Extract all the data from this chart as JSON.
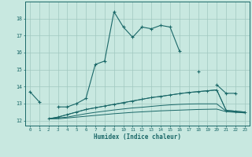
{
  "xlabel": "Humidex (Indice chaleur)",
  "bg_color": "#c8e8e0",
  "grid_color": "#a0c8c0",
  "line_color": "#1a6868",
  "x_values": [
    0,
    1,
    2,
    3,
    4,
    5,
    6,
    7,
    8,
    9,
    10,
    11,
    12,
    13,
    14,
    15,
    16,
    17,
    18,
    19,
    20,
    21,
    22,
    23
  ],
  "series1": [
    13.7,
    13.1,
    null,
    12.8,
    12.8,
    13.0,
    13.3,
    15.3,
    15.5,
    18.4,
    17.5,
    16.9,
    17.5,
    17.4,
    17.6,
    17.5,
    16.1,
    null,
    14.9,
    null,
    14.1,
    13.6,
    13.6,
    null
  ],
  "line2": [
    null,
    null,
    12.1,
    12.2,
    12.35,
    12.5,
    12.65,
    12.75,
    12.85,
    12.95,
    13.05,
    13.15,
    13.25,
    13.35,
    13.42,
    13.5,
    13.58,
    13.65,
    13.7,
    13.75,
    13.8,
    12.6,
    12.55,
    12.5
  ],
  "line3": [
    null,
    null,
    12.1,
    12.15,
    12.2,
    12.3,
    12.4,
    12.48,
    12.55,
    12.62,
    12.68,
    12.74,
    12.78,
    12.83,
    12.88,
    12.92,
    12.95,
    12.97,
    12.98,
    12.98,
    12.98,
    12.55,
    12.5,
    12.45
  ],
  "line4": [
    null,
    null,
    12.1,
    12.1,
    12.15,
    12.2,
    12.25,
    12.3,
    12.35,
    12.4,
    12.44,
    12.48,
    12.51,
    12.54,
    12.57,
    12.59,
    12.61,
    12.63,
    12.65,
    12.66,
    12.67,
    12.52,
    12.48,
    12.45
  ],
  "ylim": [
    11.7,
    19.0
  ],
  "yticks": [
    12,
    13,
    14,
    15,
    16,
    17,
    18
  ],
  "xlim": [
    -0.5,
    23.5
  ],
  "xticks": [
    0,
    1,
    2,
    3,
    4,
    5,
    6,
    7,
    8,
    9,
    10,
    11,
    12,
    13,
    14,
    15,
    16,
    17,
    18,
    19,
    20,
    21,
    22,
    23
  ]
}
